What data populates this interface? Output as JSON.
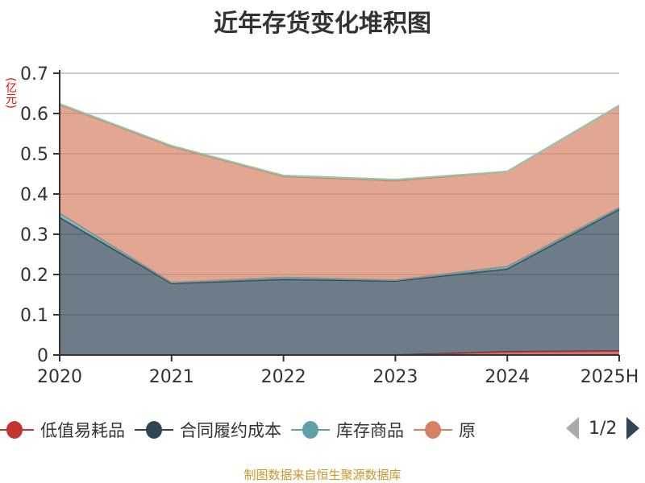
{
  "chart_data": {
    "type": "area",
    "stacked": true,
    "title": "近年存货变化堆积图",
    "ylabel": "(亿元)",
    "xlabel": "",
    "categories": [
      "2020",
      "2021",
      "2022",
      "2023",
      "2024",
      "2025H"
    ],
    "ylim": [
      0,
      0.7
    ],
    "yticks": [
      "0",
      "0.1",
      "0.2",
      "0.3",
      "0.4",
      "0.5",
      "0.6",
      "0.7"
    ],
    "grid": true,
    "legend_position": "bottom",
    "legend_page": "1/2",
    "series": [
      {
        "name": "低值易耗品",
        "color": "#c23531",
        "values": [
          0,
          0,
          0,
          0,
          0.008,
          0.01
        ]
      },
      {
        "name": "合同履约成本",
        "color": "#2f4554",
        "values": [
          0.342,
          0.178,
          0.188,
          0.184,
          0.206,
          0.352
        ]
      },
      {
        "name": "库存商品",
        "color": "#61a0a8",
        "values": [
          0.01,
          0.002,
          0.005,
          0.002,
          0.006,
          0.004
        ]
      },
      {
        "name": "原材料",
        "color": "#d48265",
        "values": [
          0.27,
          0.338,
          0.251,
          0.247,
          0.236,
          0.254
        ]
      },
      {
        "color": "#91c7ae",
        "values": [
          0.002,
          0.002,
          0.002,
          0.003,
          0,
          0
        ]
      }
    ],
    "source": "制图数据来自恒生聚源数据库"
  }
}
